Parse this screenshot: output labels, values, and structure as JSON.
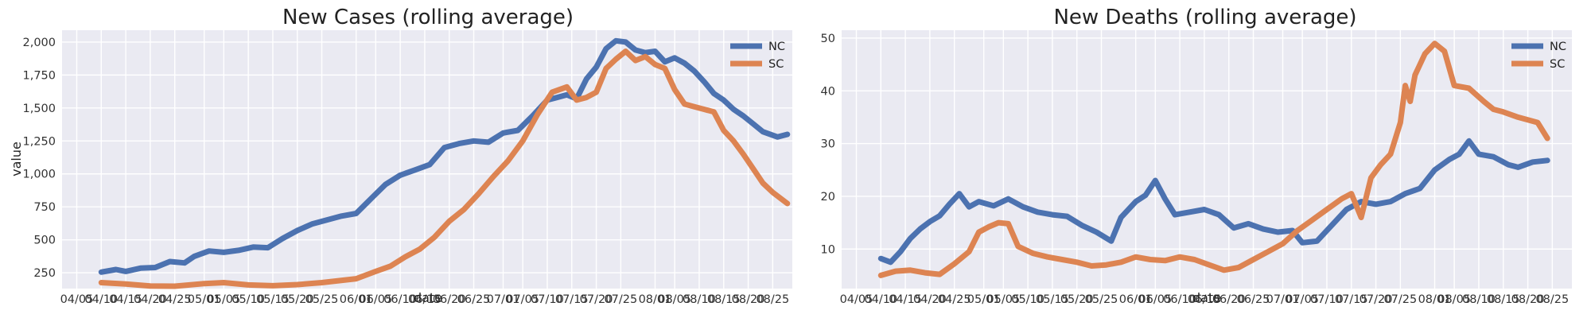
{
  "chart_data": [
    {
      "type": "line",
      "title": "New Cases (rolling average)",
      "xlabel": "date",
      "ylabel": "value",
      "x_ticks": [
        "04/05",
        "04/10",
        "04/15",
        "04/20",
        "04/25",
        "05/01",
        "05/05",
        "05/10",
        "05/15",
        "05/20",
        "05/25",
        "06/01",
        "06/05",
        "06/10",
        "06/15",
        "06/20",
        "06/25",
        "07/01",
        "07/05",
        "07/10",
        "07/15",
        "07/20",
        "07/25",
        "08/01",
        "08/05",
        "08/10",
        "08/15",
        "08/20",
        "08/25"
      ],
      "y_ticks": [
        "250",
        "500",
        "750",
        "1,000",
        "1,250",
        "1,500",
        "1,750",
        "2,000"
      ],
      "ylim": [
        130,
        2090
      ],
      "grid": true,
      "legend_position": "top-right",
      "series": [
        {
          "name": "NC",
          "color": "#4c72b0",
          "points": [
            [
              "2020-04-10",
              255
            ],
            [
              "2020-04-13",
              275
            ],
            [
              "2020-04-15",
              260
            ],
            [
              "2020-04-18",
              285
            ],
            [
              "2020-04-21",
              290
            ],
            [
              "2020-04-24",
              335
            ],
            [
              "2020-04-27",
              325
            ],
            [
              "2020-04-29",
              375
            ],
            [
              "2020-05-02",
              415
            ],
            [
              "2020-05-05",
              405
            ],
            [
              "2020-05-08",
              420
            ],
            [
              "2020-05-11",
              445
            ],
            [
              "2020-05-14",
              440
            ],
            [
              "2020-05-17",
              510
            ],
            [
              "2020-05-20",
              570
            ],
            [
              "2020-05-23",
              620
            ],
            [
              "2020-05-26",
              650
            ],
            [
              "2020-05-29",
              680
            ],
            [
              "2020-06-01",
              700
            ],
            [
              "2020-06-04",
              810
            ],
            [
              "2020-06-07",
              920
            ],
            [
              "2020-06-10",
              990
            ],
            [
              "2020-06-13",
              1030
            ],
            [
              "2020-06-16",
              1070
            ],
            [
              "2020-06-19",
              1200
            ],
            [
              "2020-06-22",
              1230
            ],
            [
              "2020-06-25",
              1250
            ],
            [
              "2020-06-28",
              1240
            ],
            [
              "2020-07-01",
              1310
            ],
            [
              "2020-07-04",
              1330
            ],
            [
              "2020-07-07",
              1440
            ],
            [
              "2020-07-10",
              1560
            ],
            [
              "2020-07-12",
              1580
            ],
            [
              "2020-07-14",
              1600
            ],
            [
              "2020-07-16",
              1570
            ],
            [
              "2020-07-18",
              1720
            ],
            [
              "2020-07-20",
              1810
            ],
            [
              "2020-07-22",
              1950
            ],
            [
              "2020-07-24",
              2010
            ],
            [
              "2020-07-26",
              2000
            ],
            [
              "2020-07-28",
              1940
            ],
            [
              "2020-07-30",
              1920
            ],
            [
              "2020-08-01",
              1930
            ],
            [
              "2020-08-03",
              1850
            ],
            [
              "2020-08-05",
              1880
            ],
            [
              "2020-08-07",
              1840
            ],
            [
              "2020-08-09",
              1780
            ],
            [
              "2020-08-11",
              1700
            ],
            [
              "2020-08-13",
              1610
            ],
            [
              "2020-08-15",
              1560
            ],
            [
              "2020-08-17",
              1490
            ],
            [
              "2020-08-19",
              1440
            ],
            [
              "2020-08-21",
              1380
            ],
            [
              "2020-08-23",
              1320
            ],
            [
              "2020-08-26",
              1280
            ],
            [
              "2020-08-28",
              1300
            ]
          ]
        },
        {
          "name": "SC",
          "color": "#dd8452",
          "points": [
            [
              "2020-04-10",
              175
            ],
            [
              "2020-04-15",
              165
            ],
            [
              "2020-04-20",
              150
            ],
            [
              "2020-04-25",
              148
            ],
            [
              "2020-05-01",
              168
            ],
            [
              "2020-05-05",
              175
            ],
            [
              "2020-05-10",
              158
            ],
            [
              "2020-05-15",
              152
            ],
            [
              "2020-05-20",
              160
            ],
            [
              "2020-05-25",
              175
            ],
            [
              "2020-06-01",
              205
            ],
            [
              "2020-06-05",
              260
            ],
            [
              "2020-06-08",
              300
            ],
            [
              "2020-06-11",
              370
            ],
            [
              "2020-06-14",
              430
            ],
            [
              "2020-06-17",
              520
            ],
            [
              "2020-06-20",
              640
            ],
            [
              "2020-06-23",
              730
            ],
            [
              "2020-06-26",
              850
            ],
            [
              "2020-06-29",
              980
            ],
            [
              "2020-07-02",
              1100
            ],
            [
              "2020-07-05",
              1250
            ],
            [
              "2020-07-08",
              1450
            ],
            [
              "2020-07-11",
              1620
            ],
            [
              "2020-07-14",
              1660
            ],
            [
              "2020-07-16",
              1560
            ],
            [
              "2020-07-18",
              1580
            ],
            [
              "2020-07-20",
              1620
            ],
            [
              "2020-07-22",
              1800
            ],
            [
              "2020-07-24",
              1870
            ],
            [
              "2020-07-26",
              1930
            ],
            [
              "2020-07-28",
              1860
            ],
            [
              "2020-07-30",
              1890
            ],
            [
              "2020-08-01",
              1830
            ],
            [
              "2020-08-03",
              1800
            ],
            [
              "2020-08-05",
              1640
            ],
            [
              "2020-08-07",
              1530
            ],
            [
              "2020-08-09",
              1510
            ],
            [
              "2020-08-11",
              1490
            ],
            [
              "2020-08-13",
              1470
            ],
            [
              "2020-08-15",
              1330
            ],
            [
              "2020-08-17",
              1250
            ],
            [
              "2020-08-19",
              1150
            ],
            [
              "2020-08-21",
              1040
            ],
            [
              "2020-08-23",
              930
            ],
            [
              "2020-08-25",
              860
            ],
            [
              "2020-08-28",
              775
            ]
          ]
        }
      ]
    },
    {
      "type": "line",
      "title": "New Deaths (rolling average)",
      "xlabel": "date",
      "ylabel": "",
      "x_ticks": [
        "04/05",
        "04/10",
        "04/15",
        "04/20",
        "04/25",
        "05/01",
        "05/05",
        "05/10",
        "05/15",
        "05/20",
        "05/25",
        "06/01",
        "06/05",
        "06/10",
        "06/15",
        "06/20",
        "06/25",
        "07/01",
        "07/05",
        "07/10",
        "07/15",
        "07/20",
        "07/25",
        "08/01",
        "08/05",
        "08/10",
        "08/15",
        "08/20",
        "08/25"
      ],
      "y_ticks": [
        "10",
        "20",
        "30",
        "40",
        "50"
      ],
      "ylim": [
        2.5,
        51.5
      ],
      "grid": true,
      "legend_position": "top-right",
      "series": [
        {
          "name": "NC",
          "color": "#4c72b0",
          "points": [
            [
              "2020-04-10",
              8.2
            ],
            [
              "2020-04-12",
              7.5
            ],
            [
              "2020-04-14",
              9.5
            ],
            [
              "2020-04-16",
              12.0
            ],
            [
              "2020-04-18",
              13.8
            ],
            [
              "2020-04-20",
              15.2
            ],
            [
              "2020-04-22",
              16.3
            ],
            [
              "2020-04-24",
              18.5
            ],
            [
              "2020-04-26",
              20.5
            ],
            [
              "2020-04-28",
              18.0
            ],
            [
              "2020-04-30",
              19.0
            ],
            [
              "2020-05-03",
              18.2
            ],
            [
              "2020-05-06",
              19.5
            ],
            [
              "2020-05-09",
              18.0
            ],
            [
              "2020-05-12",
              17.0
            ],
            [
              "2020-05-15",
              16.5
            ],
            [
              "2020-05-18",
              16.2
            ],
            [
              "2020-05-21",
              14.5
            ],
            [
              "2020-05-24",
              13.2
            ],
            [
              "2020-05-27",
              11.5
            ],
            [
              "2020-05-29",
              16.0
            ],
            [
              "2020-06-01",
              19.0
            ],
            [
              "2020-06-03",
              20.2
            ],
            [
              "2020-06-05",
              23.0
            ],
            [
              "2020-06-07",
              19.5
            ],
            [
              "2020-06-09",
              16.5
            ],
            [
              "2020-06-12",
              17.0
            ],
            [
              "2020-06-15",
              17.5
            ],
            [
              "2020-06-18",
              16.5
            ],
            [
              "2020-06-21",
              14.0
            ],
            [
              "2020-06-24",
              14.8
            ],
            [
              "2020-06-27",
              13.8
            ],
            [
              "2020-06-30",
              13.2
            ],
            [
              "2020-07-03",
              13.5
            ],
            [
              "2020-07-05",
              11.2
            ],
            [
              "2020-07-08",
              11.5
            ],
            [
              "2020-07-11",
              14.5
            ],
            [
              "2020-07-14",
              17.5
            ],
            [
              "2020-07-17",
              19.0
            ],
            [
              "2020-07-20",
              18.5
            ],
            [
              "2020-07-23",
              19.0
            ],
            [
              "2020-07-26",
              20.5
            ],
            [
              "2020-07-29",
              21.5
            ],
            [
              "2020-08-01",
              25.0
            ],
            [
              "2020-08-04",
              27.0
            ],
            [
              "2020-08-06",
              28.0
            ],
            [
              "2020-08-08",
              30.5
            ],
            [
              "2020-08-10",
              28.0
            ],
            [
              "2020-08-13",
              27.5
            ],
            [
              "2020-08-16",
              26.0
            ],
            [
              "2020-08-18",
              25.5
            ],
            [
              "2020-08-21",
              26.5
            ],
            [
              "2020-08-24",
              26.8
            ]
          ]
        },
        {
          "name": "SC",
          "color": "#dd8452",
          "points": [
            [
              "2020-04-10",
              5.0
            ],
            [
              "2020-04-13",
              5.8
            ],
            [
              "2020-04-16",
              6.0
            ],
            [
              "2020-04-19",
              5.5
            ],
            [
              "2020-04-22",
              5.2
            ],
            [
              "2020-04-25",
              7.2
            ],
            [
              "2020-04-28",
              9.5
            ],
            [
              "2020-04-30",
              13.2
            ],
            [
              "2020-05-02",
              14.2
            ],
            [
              "2020-05-04",
              15.0
            ],
            [
              "2020-05-06",
              14.8
            ],
            [
              "2020-05-08",
              10.5
            ],
            [
              "2020-05-11",
              9.2
            ],
            [
              "2020-05-14",
              8.5
            ],
            [
              "2020-05-17",
              8.0
            ],
            [
              "2020-05-20",
              7.5
            ],
            [
              "2020-05-23",
              6.8
            ],
            [
              "2020-05-26",
              7.0
            ],
            [
              "2020-05-29",
              7.5
            ],
            [
              "2020-06-01",
              8.5
            ],
            [
              "2020-06-04",
              8.0
            ],
            [
              "2020-06-07",
              7.8
            ],
            [
              "2020-06-10",
              8.5
            ],
            [
              "2020-06-13",
              8.0
            ],
            [
              "2020-06-16",
              7.0
            ],
            [
              "2020-06-19",
              6.0
            ],
            [
              "2020-06-22",
              6.5
            ],
            [
              "2020-06-25",
              8.0
            ],
            [
              "2020-06-28",
              9.5
            ],
            [
              "2020-07-01",
              11.0
            ],
            [
              "2020-07-04",
              13.5
            ],
            [
              "2020-07-07",
              15.5
            ],
            [
              "2020-07-10",
              17.5
            ],
            [
              "2020-07-13",
              19.5
            ],
            [
              "2020-07-15",
              20.5
            ],
            [
              "2020-07-17",
              16.0
            ],
            [
              "2020-07-19",
              23.5
            ],
            [
              "2020-07-21",
              26.0
            ],
            [
              "2020-07-23",
              28.0
            ],
            [
              "2020-07-25",
              34.0
            ],
            [
              "2020-07-26",
              41.0
            ],
            [
              "2020-07-27",
              38.0
            ],
            [
              "2020-07-28",
              43.0
            ],
            [
              "2020-07-30",
              47.0
            ],
            [
              "2020-08-01",
              49.0
            ],
            [
              "2020-08-03",
              47.5
            ],
            [
              "2020-08-05",
              41.0
            ],
            [
              "2020-08-08",
              40.5
            ],
            [
              "2020-08-11",
              38.0
            ],
            [
              "2020-08-13",
              36.5
            ],
            [
              "2020-08-15",
              36.0
            ],
            [
              "2020-08-18",
              35.0
            ],
            [
              "2020-08-20",
              34.5
            ],
            [
              "2020-08-22",
              34.0
            ],
            [
              "2020-08-24",
              31.0
            ]
          ]
        }
      ]
    }
  ]
}
